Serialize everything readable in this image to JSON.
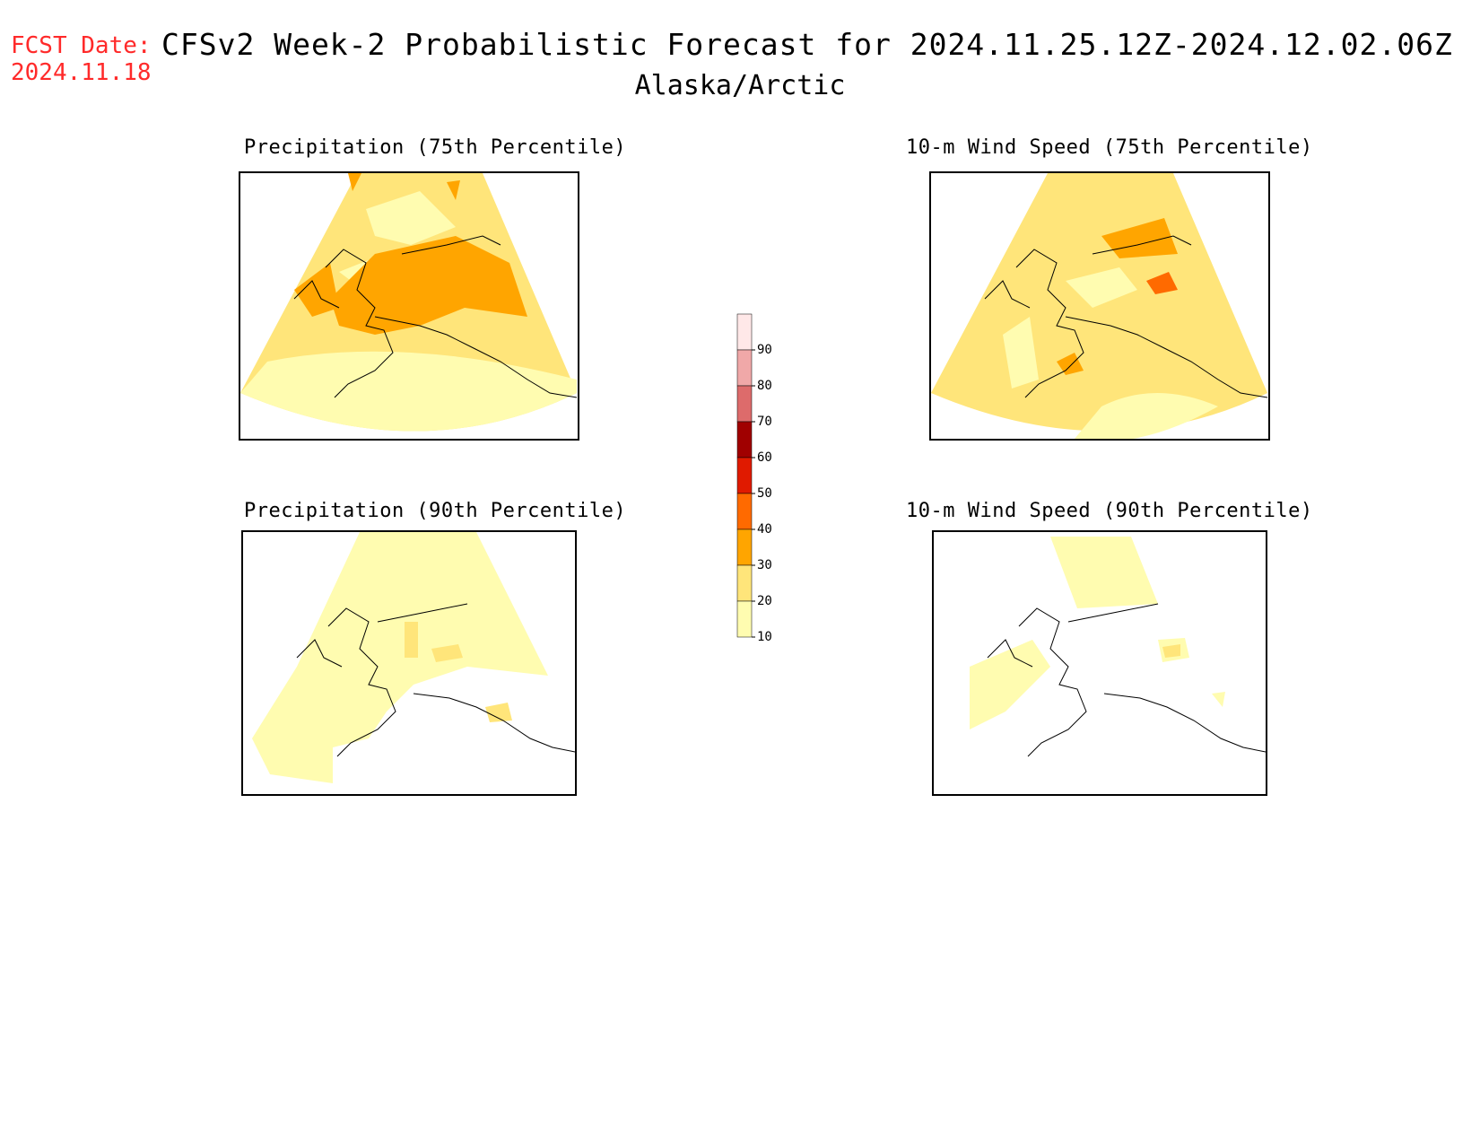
{
  "header": {
    "fcst_label": "FCST Date:",
    "fcst_date": "2024.11.18",
    "title": "CFSv2 Week-2 Probabilistic Forecast for 2024.11.25.12Z-2024.12.02.06Z",
    "subtitle": "Alaska/Arctic"
  },
  "panels": [
    {
      "title": "Precipitation (75th Percentile)"
    },
    {
      "title": "10-m Wind Speed (75th Percentile)"
    },
    {
      "title": "Precipitation (90th Percentile)"
    },
    {
      "title": "10-m Wind Speed (90th Percentile)"
    }
  ],
  "legend": {
    "levels": [
      "10",
      "20",
      "30",
      "40",
      "50",
      "60",
      "70",
      "80",
      "90"
    ],
    "colors": [
      "#fffcb0",
      "#ffe57a",
      "#ffa500",
      "#ff6a00",
      "#e01a00",
      "#a00000",
      "#dd6b6b",
      "#f0a8a8",
      "#ffe8e8"
    ]
  }
}
